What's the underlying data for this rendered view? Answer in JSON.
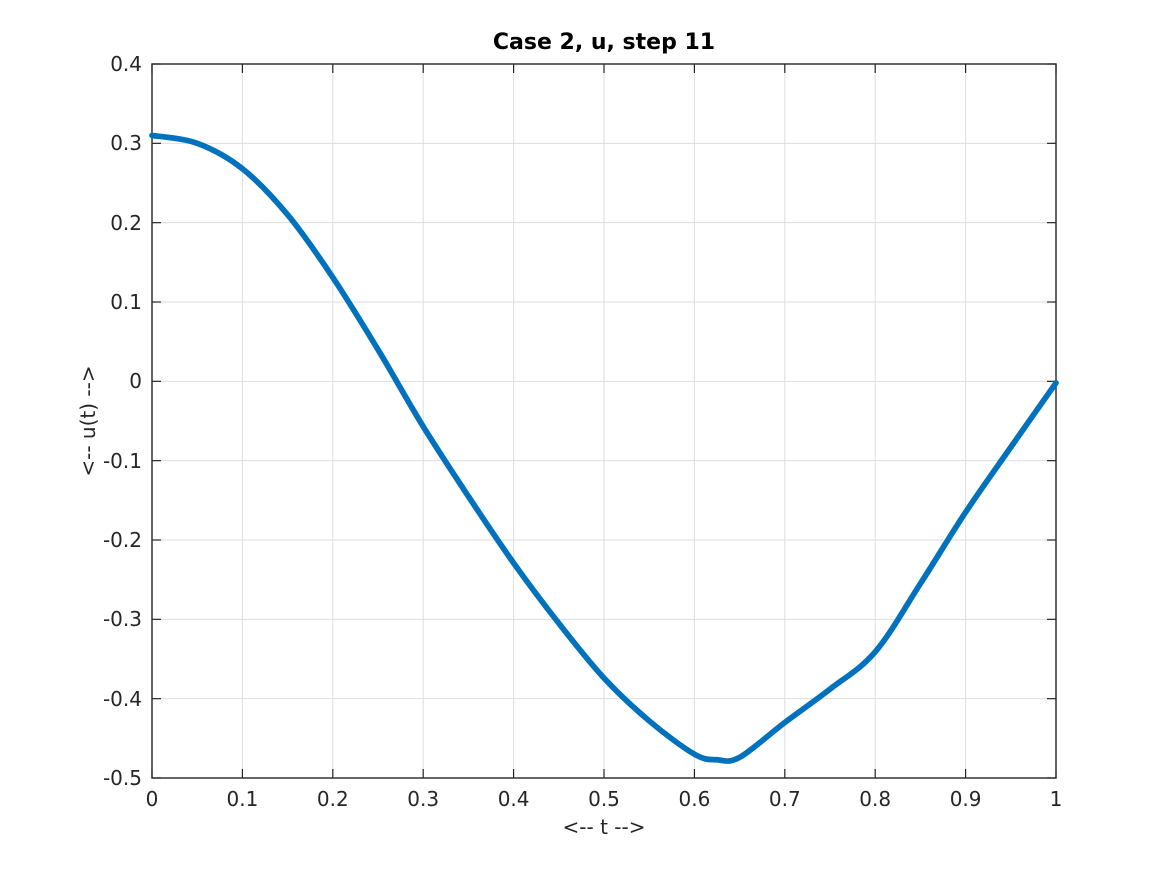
{
  "chart_data": {
    "type": "line",
    "title": "Case 2, u, step 11",
    "xlabel": "<-- t -->",
    "ylabel": "<-- u(t) -->",
    "xlim": [
      0,
      1
    ],
    "ylim": [
      -0.5,
      0.4
    ],
    "xticks": [
      0,
      0.1,
      0.2,
      0.3,
      0.4,
      0.5,
      0.6,
      0.7,
      0.8,
      0.9,
      1
    ],
    "xtick_labels": [
      "0",
      "0.1",
      "0.2",
      "0.3",
      "0.4",
      "0.5",
      "0.6",
      "0.7",
      "0.8",
      "0.9",
      "1"
    ],
    "yticks": [
      -0.5,
      -0.4,
      -0.3,
      -0.2,
      -0.1,
      0,
      0.1,
      0.2,
      0.3,
      0.4
    ],
    "ytick_labels": [
      "-0.5",
      "-0.4",
      "-0.3",
      "-0.2",
      "-0.1",
      "0",
      "0.1",
      "0.2",
      "0.3",
      "0.4"
    ],
    "grid": true,
    "legend_position": "none",
    "series": [
      {
        "name": "u",
        "x": [
          0,
          0.05,
          0.1,
          0.15,
          0.2,
          0.25,
          0.3,
          0.35,
          0.4,
          0.45,
          0.5,
          0.55,
          0.6,
          0.625,
          0.65,
          0.7,
          0.75,
          0.8,
          0.85,
          0.9,
          0.95,
          1.0
        ],
        "y": [
          0.31,
          0.3,
          0.268,
          0.21,
          0.131,
          0.04,
          -0.057,
          -0.145,
          -0.229,
          -0.305,
          -0.374,
          -0.428,
          -0.47,
          -0.477,
          -0.474,
          -0.43,
          -0.388,
          -0.341,
          -0.255,
          -0.165,
          -0.083,
          -0.002
        ]
      }
    ],
    "colors": {
      "line": "#0072bd",
      "grid": "#dedede",
      "axis": "#262626",
      "tick_label": "#262626",
      "title": "#000000"
    }
  }
}
